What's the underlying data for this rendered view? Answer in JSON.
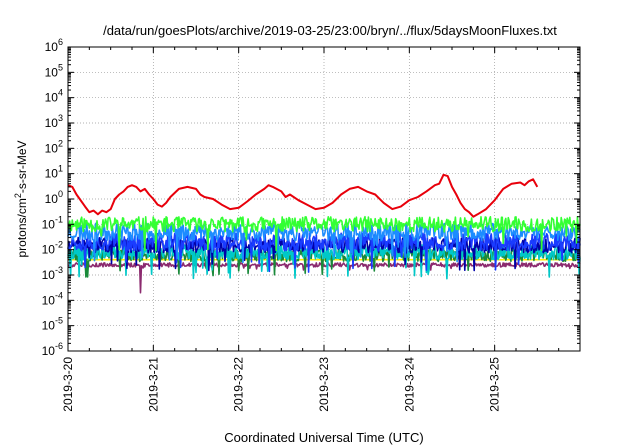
{
  "chart_data": {
    "type": "line",
    "title": "/data/run/goesPlots/archive/2019-03-25/23:00/bryn/../flux/5daysMoonFluxes.txt",
    "xlabel": "Coordinated Universal Time (UTC)",
    "ylabel": {
      "prefix": "protons/cm",
      "sup": "2",
      "suffix": "-s-sr-MeV"
    },
    "yscale": "log",
    "ylim_exponents": [
      -6,
      6
    ],
    "y_tick_exponents": [
      -6,
      -5,
      -4,
      -3,
      -2,
      -1,
      0,
      1,
      2,
      3,
      4,
      5,
      6
    ],
    "x_range_days": [
      "2019-03-20",
      "2019-03-26"
    ],
    "x_ticks": [
      "2019-3-20",
      "2019-3-21",
      "2019-3-22",
      "2019-3-23",
      "2019-3-24",
      "2019-3-25"
    ],
    "grid": true,
    "series": [
      {
        "color": "#e8000b",
        "points": [
          [
            0.0,
            3.5
          ],
          [
            0.05,
            3
          ],
          [
            0.1,
            1.5
          ],
          [
            0.2,
            0.5
          ],
          [
            0.25,
            0.3
          ],
          [
            0.3,
            0.35
          ],
          [
            0.35,
            0.25
          ],
          [
            0.4,
            0.35
          ],
          [
            0.45,
            0.3
          ],
          [
            0.5,
            0.4
          ],
          [
            0.55,
            1.0
          ],
          [
            0.6,
            1.5
          ],
          [
            0.65,
            2.0
          ],
          [
            0.7,
            3.0
          ],
          [
            0.75,
            3.5
          ],
          [
            0.8,
            3.0
          ],
          [
            0.85,
            2.0
          ],
          [
            0.9,
            2.5
          ],
          [
            0.95,
            1.5
          ],
          [
            1.0,
            1.0
          ],
          [
            1.05,
            0.6
          ],
          [
            1.1,
            0.5
          ],
          [
            1.15,
            0.7
          ],
          [
            1.2,
            1.2
          ],
          [
            1.3,
            2.5
          ],
          [
            1.4,
            3.0
          ],
          [
            1.5,
            2.5
          ],
          [
            1.55,
            1.5
          ],
          [
            1.6,
            1.2
          ],
          [
            1.7,
            1.0
          ],
          [
            1.8,
            0.6
          ],
          [
            1.9,
            0.4
          ],
          [
            2.0,
            0.45
          ],
          [
            2.1,
            0.8
          ],
          [
            2.2,
            1.5
          ],
          [
            2.3,
            2.5
          ],
          [
            2.35,
            3.5
          ],
          [
            2.4,
            3.0
          ],
          [
            2.5,
            2.0
          ],
          [
            2.55,
            1.2
          ],
          [
            2.6,
            1.5
          ],
          [
            2.7,
            0.9
          ],
          [
            2.8,
            0.6
          ],
          [
            2.9,
            0.4
          ],
          [
            3.0,
            0.45
          ],
          [
            3.1,
            0.7
          ],
          [
            3.2,
            1.5
          ],
          [
            3.3,
            2.5
          ],
          [
            3.4,
            3.0
          ],
          [
            3.5,
            2.0
          ],
          [
            3.6,
            1.5
          ],
          [
            3.7,
            0.7
          ],
          [
            3.8,
            0.4
          ],
          [
            3.9,
            0.5
          ],
          [
            4.0,
            0.9
          ],
          [
            4.1,
            1.2
          ],
          [
            4.2,
            2.0
          ],
          [
            4.3,
            3.5
          ],
          [
            4.35,
            4.0
          ],
          [
            4.4,
            9.0
          ],
          [
            4.45,
            8.0
          ],
          [
            4.5,
            3.0
          ],
          [
            4.55,
            1.5
          ],
          [
            4.6,
            0.7
          ],
          [
            4.65,
            0.4
          ],
          [
            4.7,
            0.3
          ],
          [
            4.75,
            0.2
          ],
          [
            4.8,
            0.25
          ],
          [
            4.9,
            0.4
          ],
          [
            5.0,
            0.9
          ],
          [
            5.05,
            1.5
          ],
          [
            5.1,
            2.5
          ],
          [
            5.2,
            4.0
          ],
          [
            5.3,
            4.5
          ],
          [
            5.35,
            3.5
          ],
          [
            5.4,
            5.0
          ],
          [
            5.45,
            6.0
          ],
          [
            5.5,
            3.0
          ]
        ]
      },
      {
        "color": "#33ff33",
        "base": 0.1,
        "amp": 0.3,
        "seed": 11
      },
      {
        "color": "#1c8cff",
        "base": 0.05,
        "amp": 0.35,
        "seed": 23
      },
      {
        "color": "#1a3cff",
        "base": 0.02,
        "amp": 0.35,
        "seed": 37
      },
      {
        "color": "#0000a8",
        "base": 0.015,
        "amp": 0.3,
        "seed": 51
      },
      {
        "color": "#00c8c8",
        "base": 0.008,
        "amp": 0.3,
        "seed": 67
      },
      {
        "color": "#1a8a3a",
        "base": 0.006,
        "amp": 0.25,
        "seed": 83
      },
      {
        "color": "#ffee00",
        "base": 0.004,
        "amp": 0.0,
        "seed": 97
      },
      {
        "color": "#8b2a6e",
        "base": 0.0025,
        "amp": 0.08,
        "seed": 5
      }
    ]
  }
}
